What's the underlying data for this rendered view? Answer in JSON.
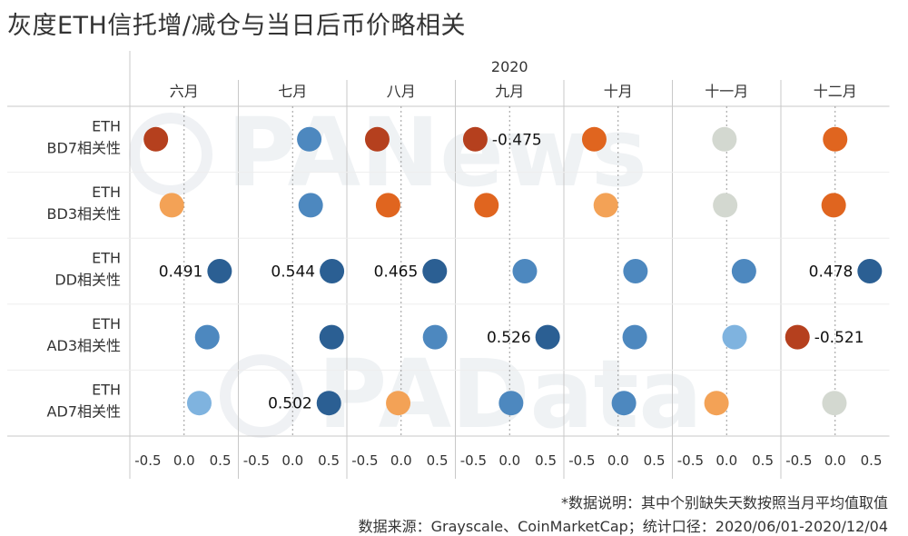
{
  "title": "灰度ETH信托增/减仓与当日后币价略相关",
  "footnote": "*数据说明：其中个别缺失天数按照当月平均值取值",
  "source": "数据来源：Grayscale、CoinMarketCap；统计口径：2020/06/01-2020/12/04",
  "watermarks": [
    "PANews",
    "PAData"
  ],
  "colors": {
    "strong_neg": "#b5401e",
    "mid_neg": "#e0651f",
    "weak_neg": "#f3a256",
    "neutral": "#d3d8d0",
    "weak_pos": "#7fb3df",
    "mid_pos": "#4d88bf",
    "strong_pos": "#2b5f93"
  },
  "chart_data": {
    "type": "scatter",
    "title": "灰度ETH信托增/减仓与当日后币价略相关",
    "year_label": "2020",
    "columns": [
      "六月",
      "七月",
      "八月",
      "九月",
      "十月",
      "十一月",
      "十二月"
    ],
    "rows": [
      {
        "line1": "ETH",
        "line2": "BD7相关性"
      },
      {
        "line1": "ETH",
        "line2": "BD3相关性"
      },
      {
        "line1": "ETH",
        "line2": "DD相关性"
      },
      {
        "line1": "ETH",
        "line2": "AD3相关性"
      },
      {
        "line1": "ETH",
        "line2": "AD7相关性"
      }
    ],
    "x_ticks": [
      "-0.5",
      "0.0",
      "0.5"
    ],
    "xlim": [
      -0.75,
      0.75
    ],
    "values": [
      [
        -0.39,
        0.23,
        -0.33,
        -0.475,
        -0.33,
        -0.03,
        0.0
      ],
      [
        -0.17,
        0.25,
        -0.18,
        -0.32,
        -0.17,
        -0.02,
        -0.02
      ],
      [
        0.491,
        0.544,
        0.465,
        0.21,
        0.24,
        0.24,
        0.478
      ],
      [
        0.32,
        0.54,
        0.47,
        0.526,
        0.23,
        0.11,
        -0.521
      ],
      [
        0.21,
        0.502,
        -0.04,
        0.02,
        0.08,
        -0.14,
        -0.01
      ]
    ],
    "data_labels": [
      [
        "",
        "",
        "",
        "-0.475",
        "",
        "",
        ""
      ],
      [
        "",
        "",
        "",
        "",
        "",
        "",
        ""
      ],
      [
        "0.491",
        "0.544",
        "0.465",
        "",
        "",
        "",
        "0.478"
      ],
      [
        "",
        "",
        "",
        "0.526",
        "",
        "",
        "-0.521"
      ],
      [
        "",
        "0.502",
        "",
        "",
        "",
        "",
        ""
      ]
    ],
    "color_groups": [
      [
        "strong_neg",
        "mid_pos",
        "strong_neg",
        "strong_neg",
        "mid_neg",
        "neutral",
        "mid_neg"
      ],
      [
        "weak_neg",
        "mid_pos",
        "mid_neg",
        "mid_neg",
        "weak_neg",
        "neutral",
        "mid_neg"
      ],
      [
        "strong_pos",
        "strong_pos",
        "strong_pos",
        "mid_pos",
        "mid_pos",
        "mid_pos",
        "strong_pos"
      ],
      [
        "mid_pos",
        "strong_pos",
        "mid_pos",
        "strong_pos",
        "mid_pos",
        "weak_pos",
        "strong_neg"
      ],
      [
        "weak_pos",
        "strong_pos",
        "weak_neg",
        "mid_pos",
        "mid_pos",
        "weak_neg",
        "neutral"
      ]
    ],
    "grid": true,
    "zero_reference_lines": true
  }
}
